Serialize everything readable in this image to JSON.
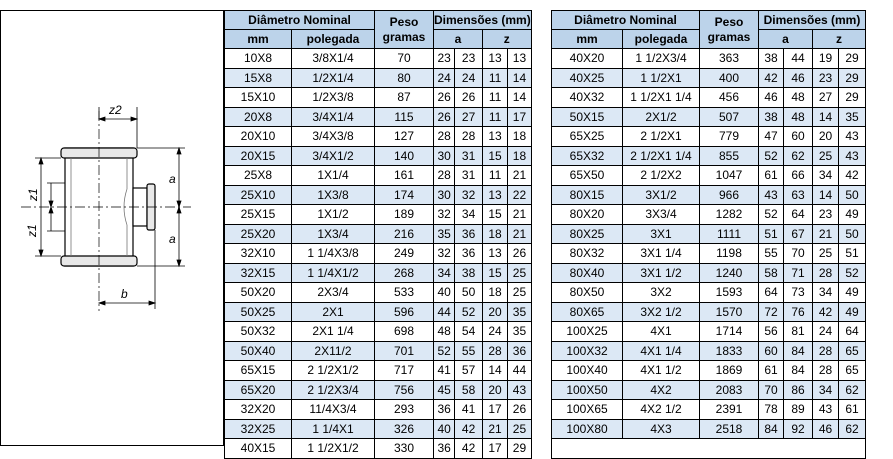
{
  "headers": {
    "diametro": "Diâmetro Nominal",
    "peso_line1": "Peso",
    "peso_line2": "gramas",
    "dimensoes": "Dimensões (mm)",
    "mm": "mm",
    "polegada": "polegada",
    "a": "a",
    "z": "z"
  },
  "drawing": {
    "label_z2": "z2",
    "label_z1_top": "z1",
    "label_z1_bottom": "z1",
    "label_a_top": "a",
    "label_a_bottom": "a",
    "label_b": "b"
  },
  "left_table": [
    [
      "10X8",
      "3/8X1/4",
      "70",
      "23",
      "23",
      "13",
      "13"
    ],
    [
      "15X8",
      "1/2X1/4",
      "80",
      "24",
      "24",
      "11",
      "14"
    ],
    [
      "15X10",
      "1/2X3/8",
      "87",
      "26",
      "26",
      "11",
      "14"
    ],
    [
      "20X8",
      "3/4X1/4",
      "115",
      "26",
      "27",
      "11",
      "17"
    ],
    [
      "20X10",
      "3/4X3/8",
      "127",
      "28",
      "28",
      "13",
      "18"
    ],
    [
      "20X15",
      "3/4X1/2",
      "140",
      "30",
      "31",
      "15",
      "18"
    ],
    [
      "25X8",
      "1X1/4",
      "161",
      "28",
      "31",
      "11",
      "21"
    ],
    [
      "25X10",
      "1X3/8",
      "174",
      "30",
      "32",
      "13",
      "22"
    ],
    [
      "25X15",
      "1X1/2",
      "189",
      "32",
      "34",
      "15",
      "21"
    ],
    [
      "25X20",
      "1X3/4",
      "216",
      "35",
      "36",
      "18",
      "21"
    ],
    [
      "32X10",
      "1 1/4X3/8",
      "249",
      "32",
      "36",
      "13",
      "26"
    ],
    [
      "32X15",
      "1 1/4X1/2",
      "268",
      "34",
      "38",
      "15",
      "25"
    ],
    [
      "50X20",
      "2X3/4",
      "533",
      "40",
      "50",
      "18",
      "25"
    ],
    [
      "50X25",
      "2X1",
      "596",
      "44",
      "52",
      "20",
      "35"
    ],
    [
      "50X32",
      "2X1 1/4",
      "698",
      "48",
      "54",
      "24",
      "35"
    ],
    [
      "50X40",
      "2X11/2",
      "701",
      "52",
      "55",
      "28",
      "36"
    ],
    [
      "65X15",
      "2 1/2X1/2",
      "717",
      "41",
      "57",
      "14",
      "44"
    ],
    [
      "65X20",
      "2 1/2X3/4",
      "756",
      "45",
      "58",
      "20",
      "43"
    ],
    [
      "32X20",
      "11/4X3/4",
      "293",
      "36",
      "41",
      "17",
      "26"
    ],
    [
      "32X25",
      "1 1/4X1",
      "326",
      "40",
      "42",
      "21",
      "25"
    ],
    [
      "40X15",
      "1 1/2X1/2",
      "330",
      "36",
      "42",
      "17",
      "29"
    ]
  ],
  "right_table": [
    [
      "40X20",
      "1 1/2X3/4",
      "363",
      "38",
      "44",
      "19",
      "29"
    ],
    [
      "40X25",
      "1 1/2X1",
      "400",
      "42",
      "46",
      "23",
      "29"
    ],
    [
      "40X32",
      "1 1/2X1 1/4",
      "456",
      "46",
      "48",
      "27",
      "29"
    ],
    [
      "50X15",
      "2X1/2",
      "507",
      "38",
      "48",
      "14",
      "35"
    ],
    [
      "65X25",
      "2 1/2X1",
      "779",
      "47",
      "60",
      "20",
      "43"
    ],
    [
      "65X32",
      "2 1/2X1 1/4",
      "855",
      "52",
      "62",
      "25",
      "43"
    ],
    [
      "65X50",
      "2 1/2X2",
      "1047",
      "61",
      "66",
      "34",
      "42"
    ],
    [
      "80X15",
      "3X1/2",
      "966",
      "43",
      "63",
      "14",
      "50"
    ],
    [
      "80X20",
      "3X3/4",
      "1282",
      "52",
      "64",
      "23",
      "49"
    ],
    [
      "80X25",
      "3X1",
      "1111",
      "51",
      "67",
      "21",
      "50"
    ],
    [
      "80X32",
      "3X1 1/4",
      "1198",
      "55",
      "70",
      "25",
      "51"
    ],
    [
      "80X40",
      "3X1 1/2",
      "1240",
      "58",
      "71",
      "28",
      "52"
    ],
    [
      "80X50",
      "3X2",
      "1593",
      "64",
      "73",
      "34",
      "49"
    ],
    [
      "80X65",
      "3X2 1/2",
      "1570",
      "72",
      "76",
      "42",
      "49"
    ],
    [
      "100X25",
      "4X1",
      "1714",
      "56",
      "81",
      "24",
      "64"
    ],
    [
      "100X32",
      "4X1 1/4",
      "1833",
      "60",
      "84",
      "28",
      "65"
    ],
    [
      "100X40",
      "4X1 1/2",
      "1869",
      "61",
      "84",
      "28",
      "65"
    ],
    [
      "100X50",
      "4X2",
      "2083",
      "70",
      "86",
      "34",
      "62"
    ],
    [
      "100X65",
      "4X2 1/2",
      "2391",
      "78",
      "89",
      "43",
      "61"
    ],
    [
      "100X80",
      "4X3",
      "2518",
      "84",
      "92",
      "46",
      "62"
    ]
  ]
}
